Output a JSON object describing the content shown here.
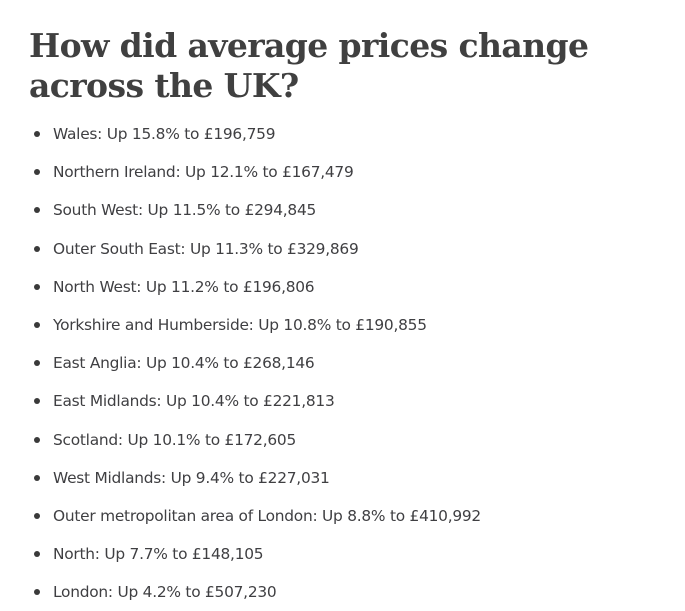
{
  "article": {
    "heading": "How did average prices change across the UK?",
    "items": [
      "Wales: Up 15.8% to £196,759",
      "Northern Ireland: Up 12.1% to £167,479",
      "South West: Up 11.5% to £294,845",
      "Outer South East: Up 11.3% to £329,869",
      "North West: Up 11.2% to £196,806",
      "Yorkshire and Humberside: Up 10.8% to £190,855",
      "East Anglia: Up 10.4% to £268,146",
      "East Midlands: Up 10.4% to £221,813",
      "Scotland: Up 10.1% to £172,605",
      "West Midlands: Up 9.4% to £227,031",
      "Outer metropolitan area of London: Up 8.8% to £410,992",
      "North: Up 7.7% to £148,105",
      "London: Up 4.2% to £507,230"
    ]
  }
}
